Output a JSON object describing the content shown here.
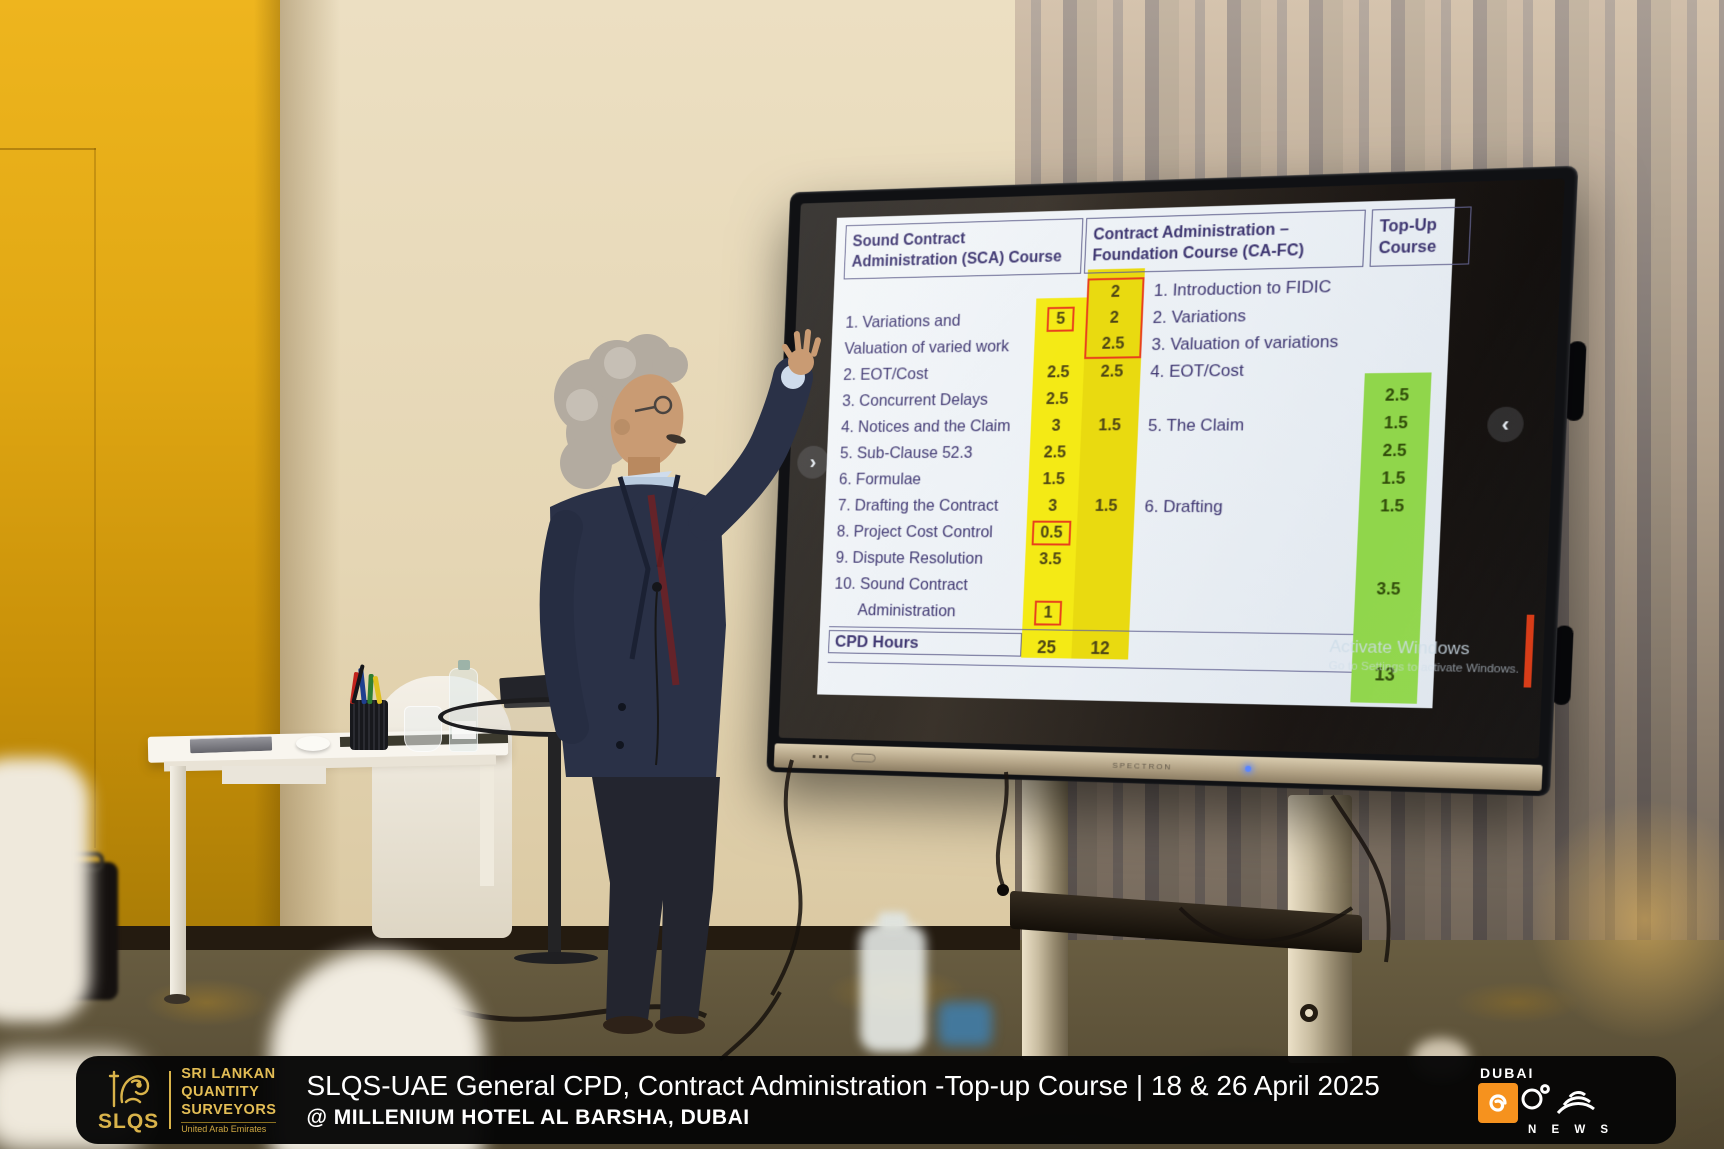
{
  "slide": {
    "col_sca": {
      "header_line1": "Sound Contract",
      "header_line2": "Administration (SCA) Course"
    },
    "col_cafc": {
      "header_line1": "Contract Administration –",
      "header_line2": "Foundation Course (CA-FC)"
    },
    "col_topup": {
      "header_line1": "Top-Up",
      "header_line2": "Course"
    },
    "rows": [
      {
        "sca": "",
        "sca_v": "",
        "cafc_v": "2",
        "cafc": "1. Introduction to FIDIC",
        "top": "",
        "cafc_box": "top"
      },
      {
        "sca": "1. Variations and",
        "sca_v": "5",
        "sca_boxed": true,
        "cafc_v": "2",
        "cafc": "2. Variations",
        "top": "",
        "cafc_box": "mid"
      },
      {
        "sca": "Valuation of varied work",
        "sca_v": "",
        "cafc_v": "2.5",
        "cafc": "3. Valuation of variations",
        "top": "",
        "cafc_box": "bottom"
      },
      {
        "sca": "2. EOT/Cost",
        "sca_v": "2.5",
        "cafc_v": "2.5",
        "cafc": "4. EOT/Cost",
        "top": ""
      },
      {
        "sca": "3. Concurrent Delays",
        "sca_v": "2.5",
        "cafc_v": "",
        "cafc": "",
        "top": "2.5"
      },
      {
        "sca": "4. Notices and the Claim",
        "sca_v": "3",
        "cafc_v": "1.5",
        "cafc": "5. The Claim",
        "top": "1.5"
      },
      {
        "sca": "5. Sub-Clause 52.3",
        "sca_v": "2.5",
        "cafc_v": "",
        "cafc": "",
        "top": "2.5"
      },
      {
        "sca": "6. Formulae",
        "sca_v": "1.5",
        "cafc_v": "",
        "cafc": "",
        "top": "1.5"
      },
      {
        "sca": "7. Drafting the Contract",
        "sca_v": "3",
        "cafc_v": "1.5",
        "cafc": "6. Drafting",
        "top": "1.5"
      },
      {
        "sca": "8. Project Cost Control",
        "sca_v": "0.5",
        "sca_boxed": true,
        "cafc_v": "",
        "cafc": "",
        "top": ""
      },
      {
        "sca": "9. Dispute Resolution",
        "sca_v": "3.5",
        "cafc_v": "",
        "cafc": "",
        "top": ""
      },
      {
        "sca": "10. Sound Contract",
        "sca_v": "",
        "cafc_v": "",
        "cafc": "",
        "top": "3.5"
      },
      {
        "sca": "Administration",
        "sca_v": "1",
        "sca_boxed": true,
        "indent": true,
        "cafc_v": "",
        "cafc": "",
        "top": ""
      }
    ],
    "footer": {
      "label": "CPD Hours",
      "sca_total": "25",
      "cafc_total": "12",
      "topup_total": "13"
    },
    "watermark": {
      "line1": "Activate Windows",
      "line2": "Go to Settings to activate Windows."
    }
  },
  "display": {
    "brand": "SPECTRON",
    "nav_prev_icon": "‹",
    "nav_next_icon": "›"
  },
  "banner": {
    "title": "SLQS-UAE General CPD, Contract Administration -Top-up Course | 18 & 26 April 2025",
    "subtitle": "@ MILLENIUM HOTEL AL BARSHA, DUBAI",
    "slqs": {
      "acronym": "SLQS",
      "org_line1": "SRI LANKAN",
      "org_line2": "QUANTITY",
      "org_line3": "SURVEYORS",
      "org_line4": "United Arab Emirates"
    },
    "news": {
      "city": "DUBAI",
      "word": "N E W S"
    }
  },
  "colors": {
    "sca_yellow": "#f4ea15",
    "cafc_yellow": "#e9da10",
    "topup_green": "#90d64b",
    "highlight_red": "#e8401c",
    "slide_text_indigo": "#3d3570",
    "banner_gold": "#d9b34a",
    "news_orange": "#f6921e",
    "wall_yellow": "#e0a713",
    "red_stripe": "#d6350f"
  }
}
